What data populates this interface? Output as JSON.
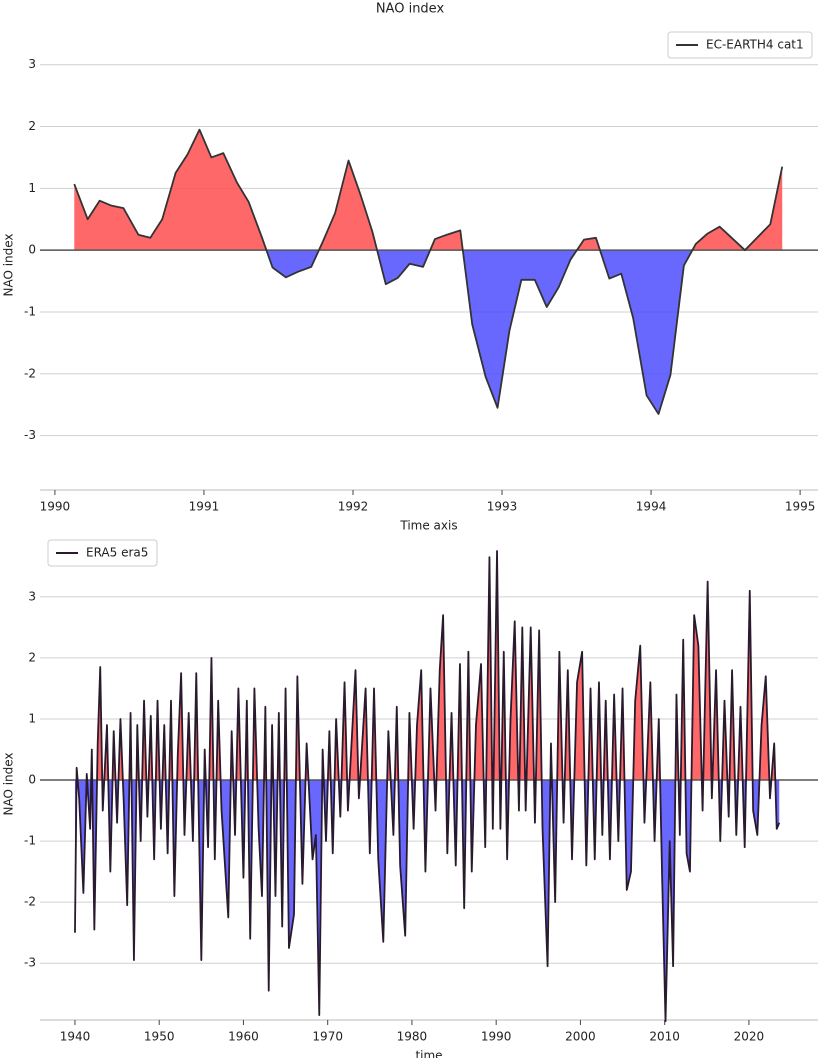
{
  "chart_data": [
    {
      "type": "line",
      "title": "NAO index",
      "xlabel": "Time axis",
      "ylabel": "NAO index",
      "xlim": [
        1989.9,
        1995.12
      ],
      "ylim": [
        -3.88,
        3.4
      ],
      "xticks": [
        1990,
        1991,
        1992,
        1993,
        1994,
        1995
      ],
      "yticks": [
        -3,
        -2,
        -1,
        0,
        1,
        2,
        3
      ],
      "grid": true,
      "legend": "upper right",
      "positive_color": "#ff4d4d",
      "negative_color": "#4d4dff",
      "series": [
        {
          "name": "EC-EARTH4 cat1",
          "color": "#333333",
          "x": [
            1990.13,
            1990.22,
            1990.3,
            1990.38,
            1990.46,
            1990.56,
            1990.64,
            1990.72,
            1990.81,
            1990.89,
            1990.97,
            1991.05,
            1991.13,
            1991.22,
            1991.3,
            1991.39,
            1991.46,
            1991.55,
            1991.63,
            1991.72,
            1991.8,
            1991.88,
            1991.97,
            1992.05,
            1992.13,
            1992.22,
            1992.3,
            1992.38,
            1992.47,
            1992.55,
            1992.63,
            1992.72,
            1992.8,
            1992.89,
            1992.97,
            1993.05,
            1993.13,
            1993.22,
            1993.3,
            1993.38,
            1993.46,
            1993.55,
            1993.63,
            1993.72,
            1993.8,
            1993.88,
            1993.97,
            1994.05,
            1994.13,
            1994.22,
            1994.3,
            1994.38,
            1994.46,
            1994.63,
            1994.8,
            1994.88
          ],
          "values": [
            1.07,
            0.5,
            0.8,
            0.72,
            0.68,
            0.25,
            0.2,
            0.5,
            1.25,
            1.55,
            1.95,
            1.5,
            1.57,
            1.1,
            0.78,
            0.2,
            -0.28,
            -0.44,
            -0.35,
            -0.27,
            0.15,
            0.6,
            1.45,
            0.9,
            0.3,
            -0.55,
            -0.45,
            -0.22,
            -0.27,
            0.18,
            0.25,
            0.32,
            -1.2,
            -2.05,
            -2.55,
            -1.3,
            -0.48,
            -0.48,
            -0.92,
            -0.6,
            -0.15,
            0.17,
            0.2,
            -0.46,
            -0.38,
            -1.1,
            -2.35,
            -2.65,
            -2.02,
            -0.25,
            0.1,
            0.27,
            0.38,
            0.0,
            0.42,
            1.35
          ]
        }
      ]
    },
    {
      "type": "line",
      "xlabel": "time",
      "ylabel": "NAO index",
      "xlim": [
        1935.85,
        2028.2
      ],
      "ylim": [
        -3.93,
        3.8
      ],
      "xticks": [
        1940,
        1950,
        1960,
        1970,
        1980,
        1990,
        2000,
        2010,
        2020
      ],
      "yticks": [
        -3,
        -2,
        -1,
        0,
        1,
        2,
        3
      ],
      "grid": true,
      "legend": "upper left",
      "positive_color": "#ff4d4d",
      "negative_color": "#4d4dff",
      "series": [
        {
          "name": "ERA5 era5",
          "color": "#2a1a2e",
          "x": [
            1940.0,
            1940.2,
            1940.5,
            1941.0,
            1941.4,
            1941.8,
            1942.0,
            1942.3,
            1942.7,
            1943.0,
            1943.3,
            1943.8,
            1944.2,
            1944.6,
            1945.0,
            1945.4,
            1945.8,
            1946.2,
            1946.6,
            1947.0,
            1947.4,
            1947.8,
            1948.2,
            1948.6,
            1949.0,
            1949.4,
            1949.8,
            1950.2,
            1950.6,
            1951.0,
            1951.4,
            1951.8,
            1952.2,
            1952.6,
            1953.0,
            1953.5,
            1954.0,
            1954.4,
            1955.0,
            1955.4,
            1955.8,
            1956.2,
            1956.6,
            1957.0,
            1957.4,
            1958.2,
            1958.6,
            1959.0,
            1959.4,
            1960.0,
            1960.4,
            1960.8,
            1961.3,
            1961.8,
            1962.2,
            1962.6,
            1963.0,
            1963.4,
            1963.8,
            1964.2,
            1964.6,
            1965.0,
            1965.4,
            1966.0,
            1966.4,
            1967.0,
            1967.5,
            1968.2,
            1968.6,
            1969.0,
            1969.4,
            1969.8,
            1970.2,
            1970.6,
            1971.0,
            1971.5,
            1972.0,
            1972.4,
            1973.3,
            1973.7,
            1974.5,
            1975.0,
            1975.5,
            1976.0,
            1976.6,
            1977.2,
            1977.8,
            1978.2,
            1978.6,
            1979.2,
            1979.7,
            1980.2,
            1980.6,
            1981.1,
            1981.6,
            1982.2,
            1982.8,
            1983.3,
            1983.7,
            1984.2,
            1984.7,
            1985.2,
            1985.7,
            1986.2,
            1986.7,
            1987.1,
            1987.6,
            1988.2,
            1988.7,
            1989.2,
            1989.6,
            1990.1,
            1990.5,
            1990.9,
            1991.3,
            1991.7,
            1992.2,
            1992.7,
            1993.1,
            1993.5,
            1994.1,
            1994.6,
            1995.1,
            1995.5,
            1996.1,
            1996.5,
            1997.0,
            1997.5,
            1998.0,
            1998.5,
            1999.0,
            1999.6,
            2000.2,
            2000.7,
            2001.2,
            2001.7,
            2002.2,
            2002.6,
            2003.0,
            2003.5,
            2004.0,
            2004.5,
            2005.0,
            2005.5,
            2006.0,
            2006.5,
            2007.1,
            2007.6,
            2008.3,
            2008.8,
            2009.3,
            2009.7,
            2010.1,
            2010.6,
            2011.0,
            2011.4,
            2011.8,
            2012.2,
            2012.6,
            2013.0,
            2013.5,
            2014.0,
            2014.5,
            2015.1,
            2015.6,
            2016.1,
            2016.6,
            2017.1,
            2017.6,
            2018.0,
            2018.5,
            2019.0,
            2019.5,
            2020.1,
            2020.5,
            2021.0,
            2021.5,
            2022.0,
            2022.5,
            2023.0,
            2023.3,
            2023.6
          ],
          "values": [
            -2.5,
            0.2,
            -0.3,
            -1.85,
            0.1,
            -0.8,
            0.5,
            -2.45,
            0.6,
            1.85,
            -0.5,
            0.9,
            -1.5,
            0.8,
            -0.7,
            1.0,
            -0.4,
            -2.05,
            1.1,
            -2.95,
            0.9,
            -1.0,
            1.3,
            -0.6,
            1.05,
            -1.3,
            1.3,
            -0.8,
            0.9,
            -1.2,
            1.3,
            -1.9,
            0.4,
            1.75,
            -0.9,
            1.1,
            -1.0,
            1.75,
            -2.95,
            0.5,
            -1.1,
            2.0,
            -1.3,
            1.3,
            -0.5,
            -2.25,
            0.8,
            -0.9,
            1.5,
            -1.6,
            1.3,
            -2.6,
            1.5,
            -0.8,
            -1.9,
            1.2,
            -3.45,
            0.9,
            -1.9,
            1.1,
            -2.4,
            1.5,
            -2.75,
            -2.2,
            1.7,
            -1.7,
            0.6,
            -1.3,
            -0.9,
            -3.85,
            0.5,
            -1.0,
            0.8,
            -1.2,
            1.0,
            -0.6,
            1.6,
            -0.5,
            1.8,
            -0.3,
            1.5,
            -1.2,
            1.5,
            -1.3,
            -2.65,
            0.8,
            -0.9,
            1.2,
            -1.4,
            -2.55,
            1.1,
            -0.8,
            0.9,
            1.8,
            -1.5,
            1.5,
            -0.5,
            1.8,
            2.7,
            -1.2,
            1.1,
            -1.4,
            1.9,
            -2.1,
            2.1,
            -1.5,
            0.9,
            1.9,
            -1.1,
            3.65,
            -0.8,
            3.75,
            -0.8,
            2.1,
            -1.3,
            1.0,
            2.6,
            -0.5,
            2.5,
            -0.5,
            2.5,
            -0.7,
            2.45,
            -0.8,
            -3.05,
            0.6,
            -2.0,
            2.1,
            -0.7,
            1.8,
            -1.3,
            1.6,
            2.1,
            -1.4,
            1.5,
            -1.3,
            1.6,
            -0.9,
            1.3,
            -1.3,
            1.4,
            -1.0,
            1.5,
            -1.8,
            -1.5,
            1.3,
            2.2,
            -0.7,
            1.6,
            -1.0,
            1.0,
            -1.6,
            -3.95,
            -1.0,
            -3.05,
            1.4,
            -0.9,
            2.3,
            -1.2,
            -1.5,
            2.7,
            2.2,
            -0.5,
            3.25,
            -0.3,
            1.8,
            -1.0,
            1.3,
            -0.6,
            1.8,
            -0.9,
            1.2,
            -1.1,
            3.1,
            -0.5,
            -0.9,
            0.9,
            1.7,
            -0.3,
            0.6,
            -0.8,
            -0.7
          ]
        }
      ]
    }
  ]
}
